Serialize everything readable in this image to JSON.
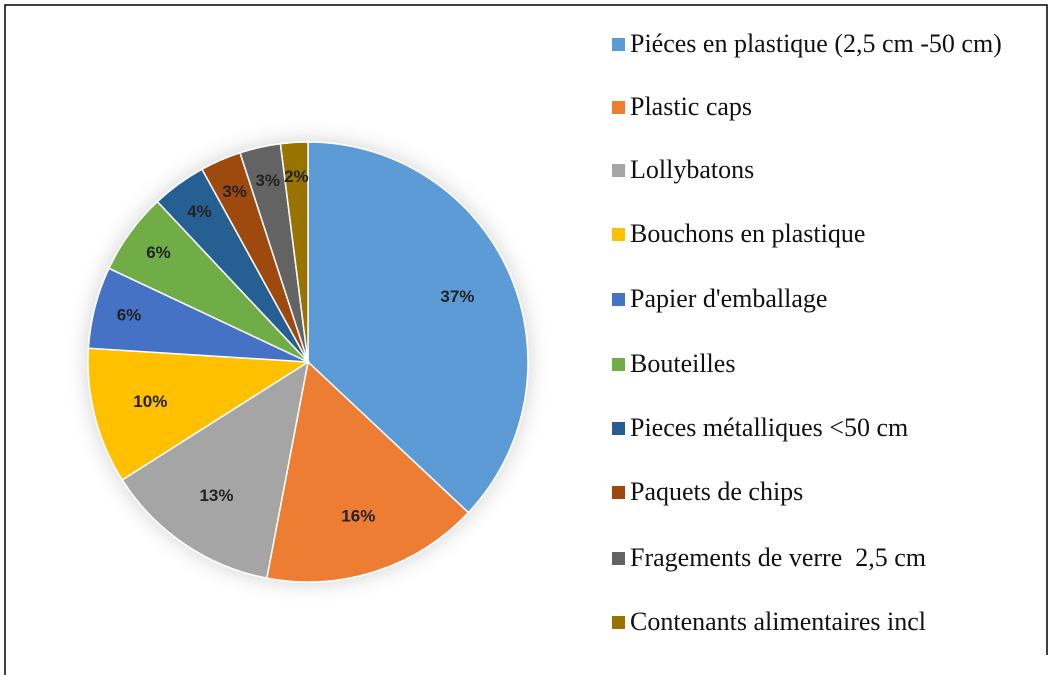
{
  "chart_data": {
    "type": "pie",
    "categories": [
      "Piéces en plastique (2,5 cm -50 cm)",
      "Plastic caps",
      "Lollybatons",
      "Bouchons en plastique",
      "Papier d'emballage",
      "Bouteilles",
      "Pieces métalliques <50 cm",
      "Paquets de chips",
      "Fragements de verre  2,5 cm",
      "Contenants alimentaires incl"
    ],
    "values": [
      37,
      16,
      13,
      10,
      6,
      6,
      4,
      3,
      3,
      2
    ],
    "value_labels": [
      "37%",
      "16%",
      "13%",
      "10%",
      "6%",
      "6%",
      "4%",
      "3%",
      "3%",
      "2%"
    ],
    "colors": [
      "#5b9bd5",
      "#ed7d31",
      "#a5a5a5",
      "#ffc000",
      "#4472c4",
      "#70ad47",
      "#255e91",
      "#9e480e",
      "#636363",
      "#997300"
    ],
    "legend": "right"
  }
}
